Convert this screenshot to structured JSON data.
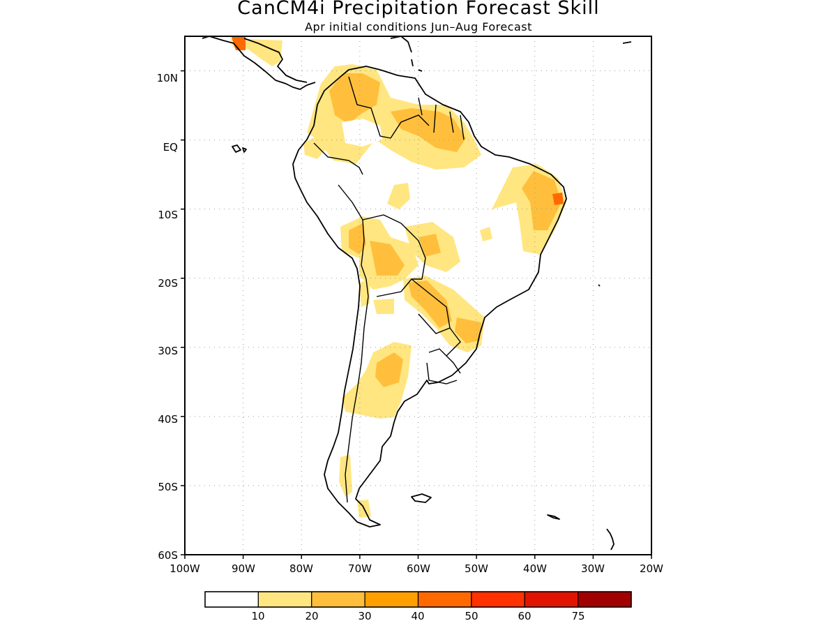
{
  "title": "CanCM4i Precipitation Forecast Skill",
  "subtitle": "Apr initial conditions  Jun–Aug Forecast",
  "map": {
    "lon_range": [
      -100,
      -20
    ],
    "lat_range": [
      -60,
      15
    ],
    "lat_labels": [
      "10N",
      "EQ",
      "10S",
      "20S",
      "30S",
      "40S",
      "50S",
      "60S"
    ],
    "lon_labels": [
      "100W",
      "90W",
      "80W",
      "70W",
      "60W",
      "50W",
      "40W",
      "30W",
      "20W"
    ],
    "gridlines": "dotted"
  },
  "legend": {
    "labels": [
      "10",
      "20",
      "30",
      "40",
      "50",
      "60",
      "75"
    ],
    "colors": [
      "#ffffff",
      "#ffe680",
      "#ffbf3c",
      "#ffa000",
      "#ff6a00",
      "#ff3200",
      "#e01400",
      "#a00000"
    ]
  }
}
